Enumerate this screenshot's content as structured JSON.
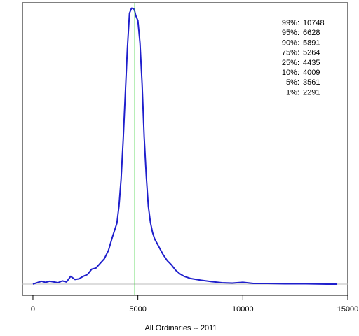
{
  "chart_data": {
    "type": "line",
    "title": "",
    "xlabel": "All Ordinaries -- 2011",
    "ylabel": "",
    "xlim": [
      -500,
      15000
    ],
    "ylim": [
      -3.15e-05,
      0.00079
    ],
    "xticks": [
      0,
      5000,
      10000,
      15000
    ],
    "xtick_labels": [
      "0",
      "5000",
      "10000",
      "15000"
    ],
    "grid": false,
    "legend": "none",
    "colors": {
      "density_line": "#1f1fcc",
      "median_line": "#33cc33",
      "baseline": "#bbbbbb"
    },
    "median_x": 4850,
    "baseline_y": 0,
    "series": [
      {
        "values_x": [
          0,
          200,
          400,
          600,
          800,
          1000,
          1200,
          1400,
          1600,
          1800,
          2000,
          2200,
          2400,
          2600,
          2800,
          3000,
          3200,
          3400,
          3600,
          3800,
          4000,
          4100,
          4200,
          4300,
          4400,
          4500,
          4600,
          4700,
          4800,
          4850,
          4900,
          5000,
          5100,
          5200,
          5300,
          5400,
          5500,
          5600,
          5700,
          5800,
          6000,
          6200,
          6400,
          6600,
          6800,
          7000,
          7200,
          7500,
          8000,
          8500,
          9000,
          9500,
          10000,
          10500,
          11000,
          12000,
          13000,
          14000,
          14500
        ],
        "values_y": [
          0.0,
          4e-06,
          8e-06,
          5e-06,
          8e-06,
          6e-06,
          4e-06,
          9e-06,
          6e-06,
          2.2e-05,
          1.3e-05,
          1.5e-05,
          2.2e-05,
          2.7e-05,
          4.2e-05,
          4.5e-05,
          5.8e-05,
          7.1e-05,
          9.5e-05,
          0.000135,
          0.000171,
          0.000219,
          0.000295,
          0.000405,
          0.000534,
          0.000663,
          0.000761,
          0.000775,
          0.000774,
          0.000766,
          0.000754,
          0.00074,
          0.000677,
          0.000563,
          0.000413,
          0.000303,
          0.000218,
          0.000173,
          0.000145,
          0.000127,
          0.000105,
          8.3e-05,
          6.6e-05,
          5.4e-05,
          3.9e-05,
          2.9e-05,
          2.2e-05,
          1.6e-05,
          1.1e-05,
          7e-06,
          4e-06,
          3e-06,
          5e-06,
          2e-06,
          2e-06,
          1e-06,
          1e-06,
          0.0,
          0.0
        ]
      }
    ],
    "annotations": [
      {
        "label": "99%:",
        "value": "10748"
      },
      {
        "label": "95%:",
        "value": "6628"
      },
      {
        "label": "90%:",
        "value": "5891"
      },
      {
        "label": "75%:",
        "value": "5264"
      },
      {
        "label": "25%:",
        "value": "4435"
      },
      {
        "label": "10%:",
        "value": "4009"
      },
      {
        "label": "5%:",
        "value": "3561"
      },
      {
        "label": "1%:",
        "value": "2291"
      }
    ]
  }
}
